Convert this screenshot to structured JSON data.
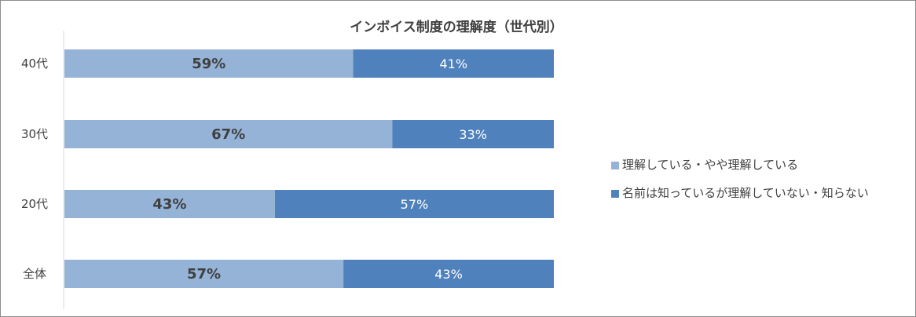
{
  "chart_data": {
    "type": "bar",
    "orientation": "horizontal",
    "stacked": true,
    "normalized": true,
    "title": "インボイス制度の理解度（世代別）",
    "categories": [
      "40代",
      "30代",
      "20代",
      "全体"
    ],
    "series": [
      {
        "name": "理解している・やや理解している",
        "values": [
          59,
          67,
          43,
          57
        ],
        "labels": [
          "59%",
          "67%",
          "43%",
          "57%"
        ],
        "color": "#95b3d7"
      },
      {
        "name": "名前は知っているが理解していない・知らない",
        "values": [
          41,
          33,
          57,
          43
        ],
        "labels": [
          "41%",
          "33%",
          "57%",
          "43%"
        ],
        "color": "#4f81bd"
      }
    ],
    "xlim": [
      0,
      100
    ],
    "grid": false,
    "legend": "right"
  }
}
